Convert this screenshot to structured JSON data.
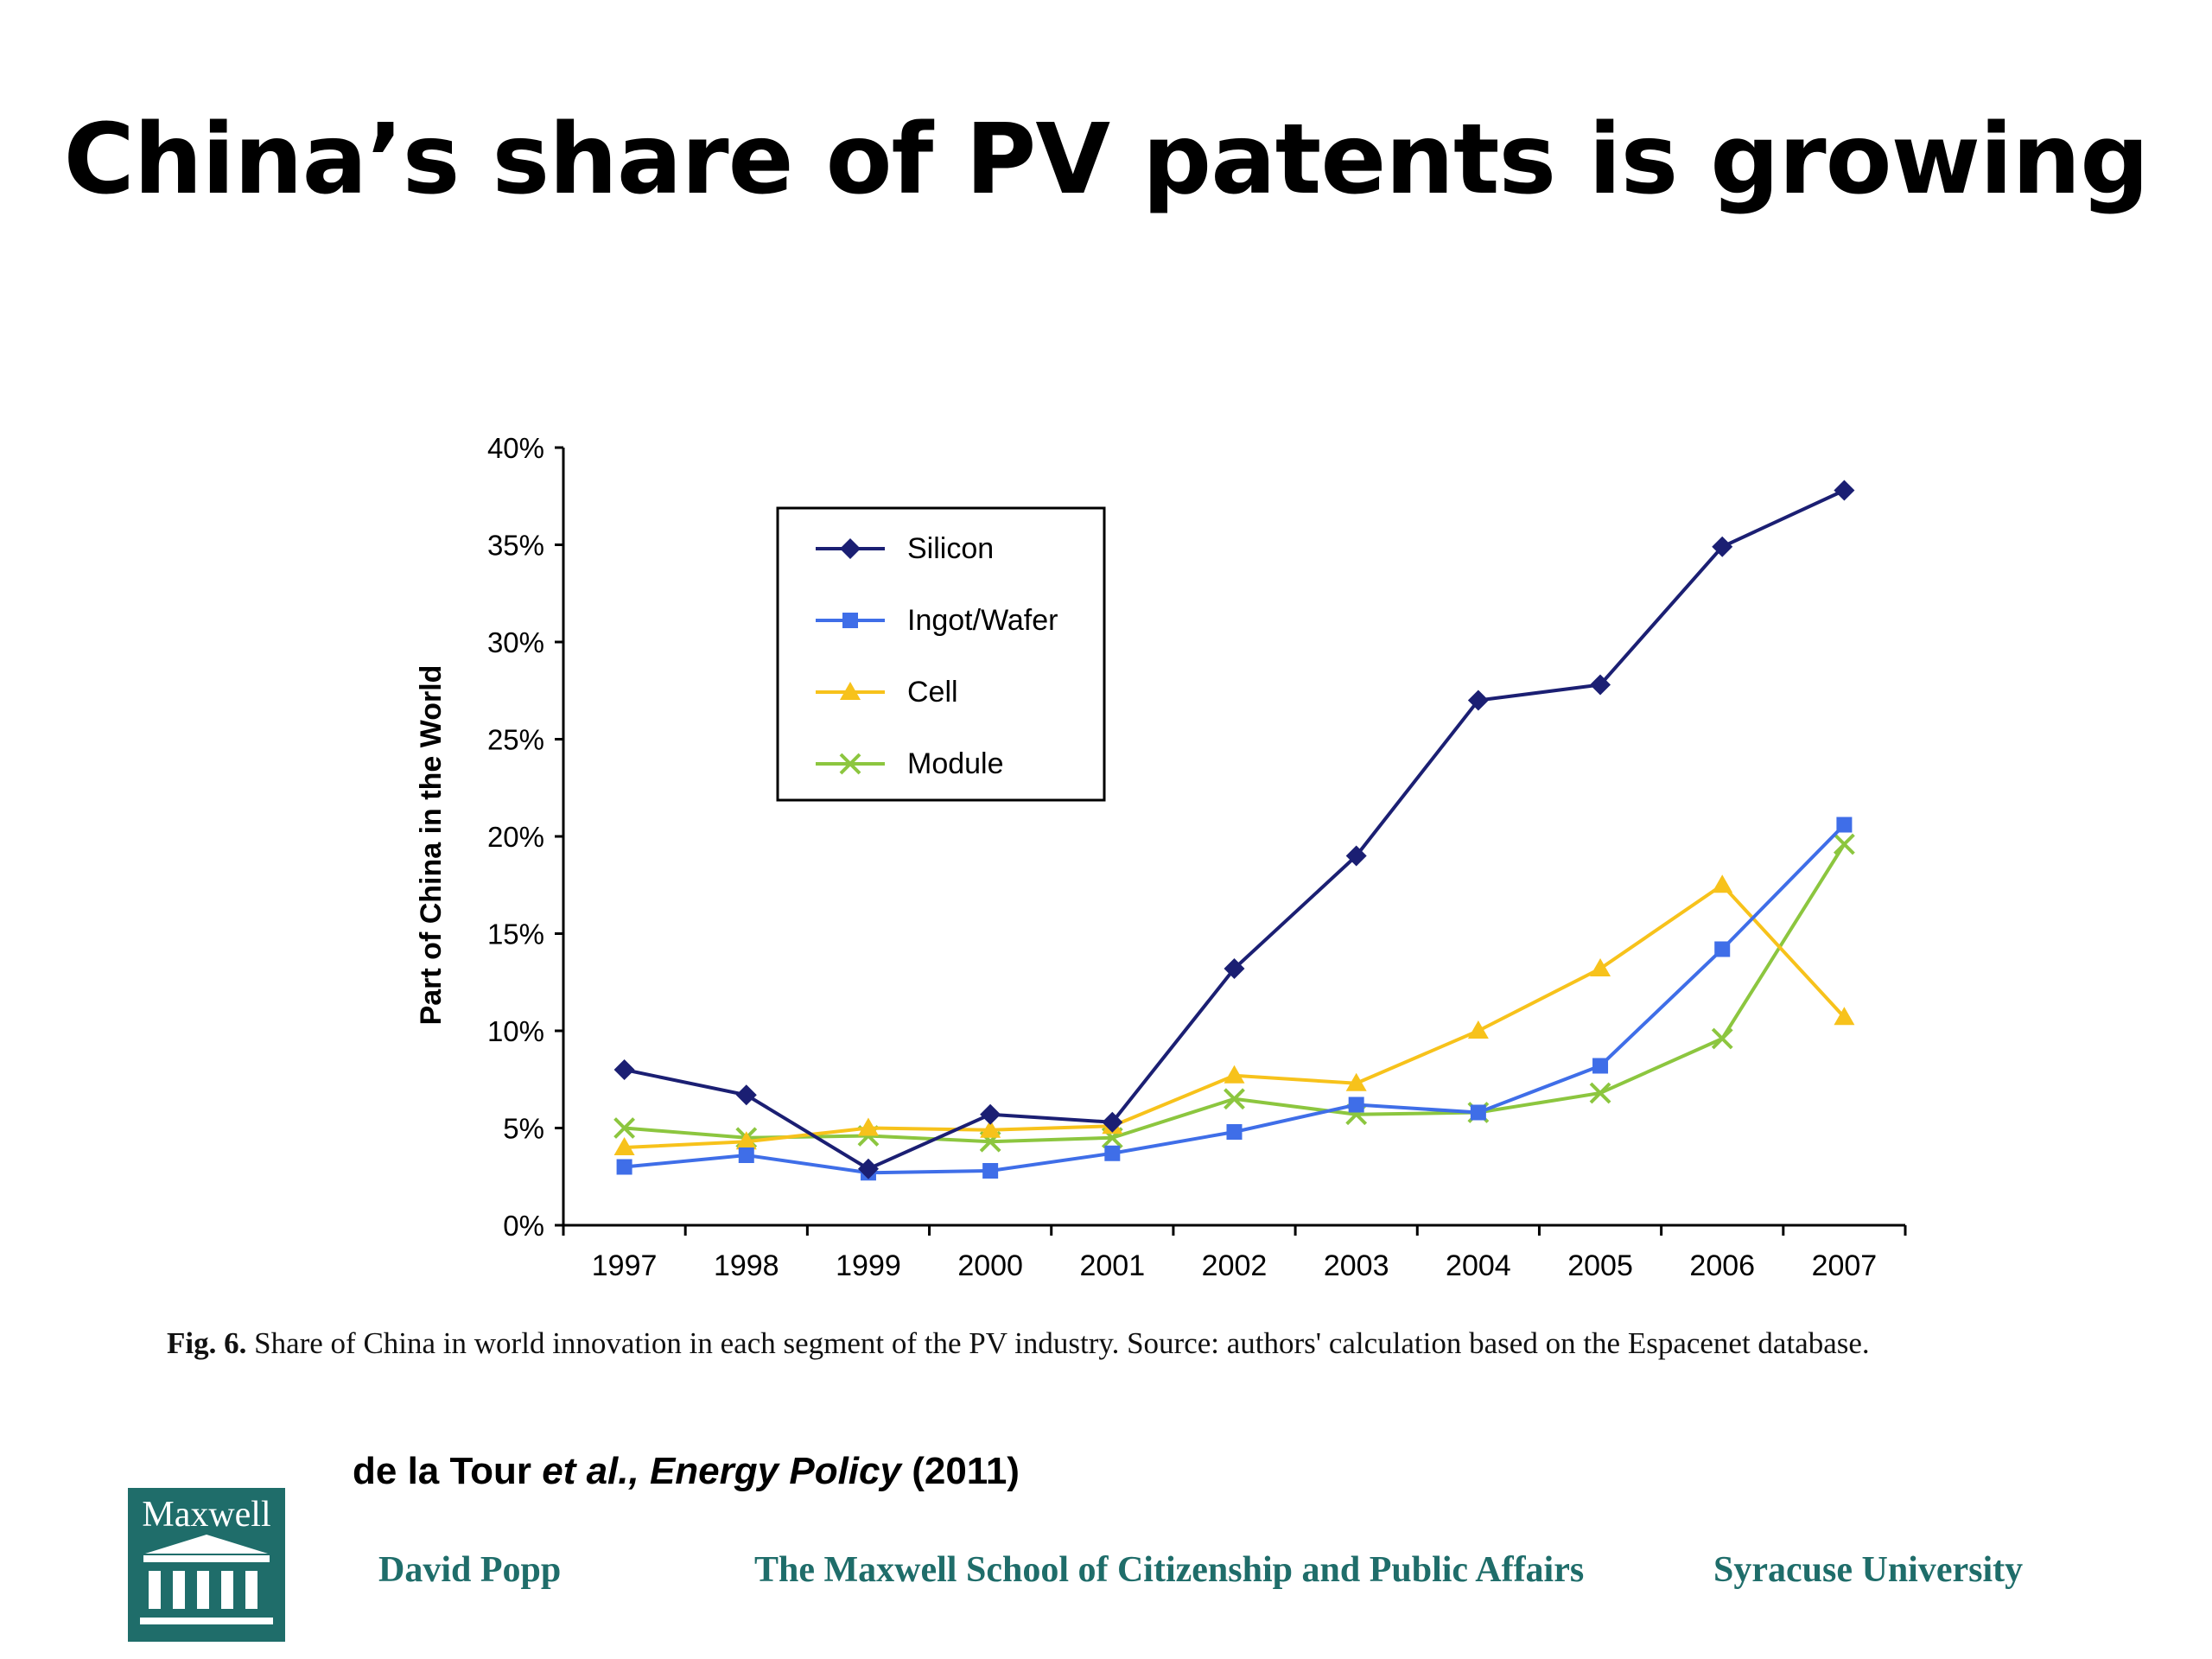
{
  "slide": {
    "title": "China’s share of PV patents is growing"
  },
  "caption": {
    "label": "Fig. 6.",
    "text": "Share of China in world innovation in each segment of the PV industry. Source: authors' calculation based on the Espacenet database."
  },
  "citation": {
    "authors": "de la Tour",
    "etal": "et al.,",
    "journal": "Energy Policy",
    "year": "(2011)"
  },
  "footer": {
    "logo_text": "Maxwell",
    "author": "David Popp",
    "school": "The Maxwell School of Citizenship and Public Affairs",
    "university": "Syracuse University",
    "color": "#1f6d6a"
  },
  "chart_data": {
    "type": "line",
    "title": "",
    "xlabel": "",
    "ylabel": "Part of China in the World",
    "categories": [
      "1997",
      "1998",
      "1999",
      "2000",
      "2001",
      "2002",
      "2003",
      "2004",
      "2005",
      "2006",
      "2007"
    ],
    "ylim": [
      0,
      40
    ],
    "yticks": [
      "0%",
      "5%",
      "10%",
      "15%",
      "20%",
      "25%",
      "30%",
      "35%",
      "40%"
    ],
    "legend_position": "top-left",
    "grid": false,
    "series": [
      {
        "name": "Silicon",
        "color": "#1b1f73",
        "marker": "diamond",
        "values": [
          8.0,
          6.7,
          2.9,
          5.7,
          5.3,
          13.2,
          19.0,
          27.0,
          27.8,
          34.9,
          37.8
        ]
      },
      {
        "name": "Ingot/Wafer",
        "color": "#3f6ee8",
        "marker": "square",
        "values": [
          3.0,
          3.6,
          2.7,
          2.8,
          3.7,
          4.8,
          6.2,
          5.8,
          8.2,
          14.2,
          20.6
        ]
      },
      {
        "name": "Cell",
        "color": "#f7c21b",
        "marker": "triangle",
        "values": [
          4.0,
          4.3,
          5.0,
          4.9,
          5.1,
          7.7,
          7.3,
          10.0,
          13.2,
          17.5,
          10.7
        ]
      },
      {
        "name": "Module",
        "color": "#8cc63f",
        "marker": "x",
        "values": [
          5.0,
          4.5,
          4.6,
          4.3,
          4.5,
          6.5,
          5.7,
          5.8,
          6.8,
          9.6,
          19.6
        ]
      }
    ]
  }
}
